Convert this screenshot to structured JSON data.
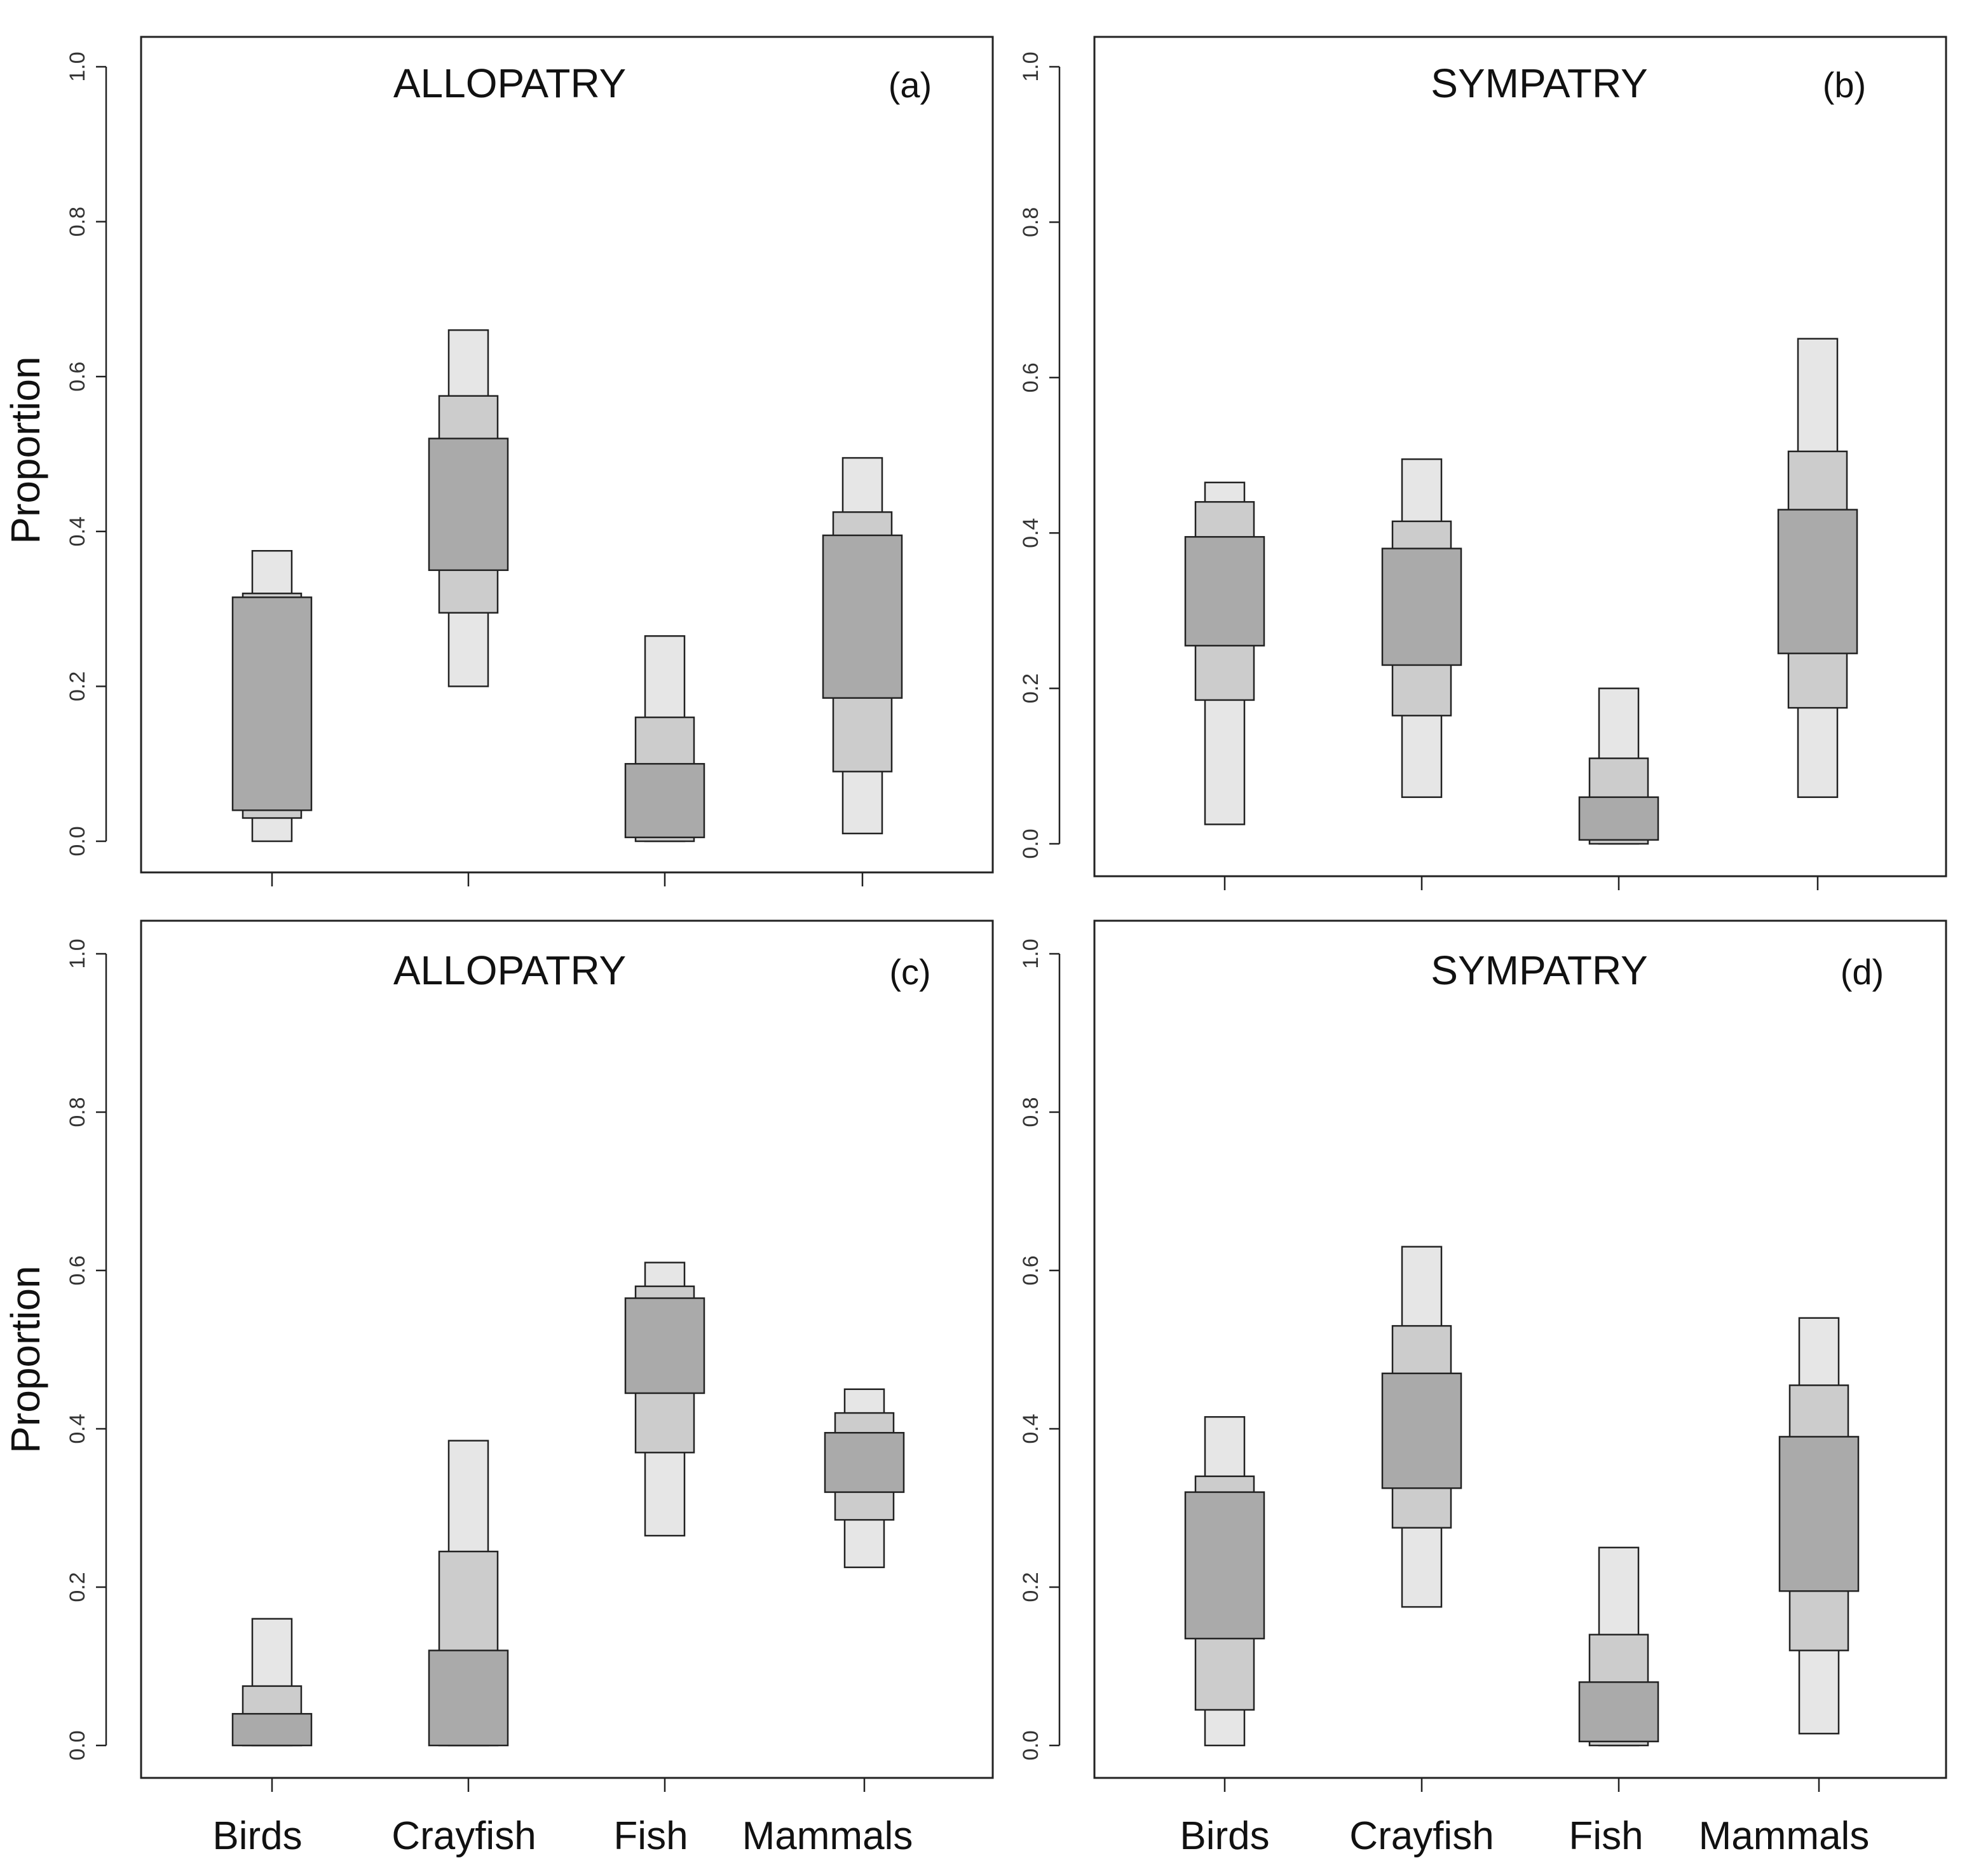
{
  "figure": {
    "ylabel": "Proportion",
    "colors": {
      "outer": "#e6e6e6",
      "middle": "#cccccc",
      "inner": "#aaaaaa",
      "stroke": "#222222"
    }
  },
  "chart_data": [
    {
      "type": "box-interval",
      "panel": "a",
      "title": "ALLOPATRY",
      "tag": "(a)",
      "ylabel": "Proportion",
      "ylim": [
        0,
        1
      ],
      "yticks": [
        "0.0",
        "0.2",
        "0.4",
        "0.6",
        "0.8",
        "1.0"
      ],
      "categories": [
        "Birds",
        "Crayfish",
        "Fish",
        "Mammals"
      ],
      "show_category_labels": false,
      "intervals": [
        {
          "category": "Birds",
          "outer": [
            0.0,
            0.375
          ],
          "middle": [
            0.03,
            0.32
          ],
          "inner": [
            0.04,
            0.315
          ]
        },
        {
          "category": "Crayfish",
          "outer": [
            0.2,
            0.66
          ],
          "middle": [
            0.295,
            0.575
          ],
          "inner": [
            0.35,
            0.52
          ]
        },
        {
          "category": "Fish",
          "outer": [
            0.0,
            0.265
          ],
          "middle": [
            0.0,
            0.16
          ],
          "inner": [
            0.005,
            0.1
          ]
        },
        {
          "category": "Mammals",
          "outer": [
            0.01,
            0.495
          ],
          "middle": [
            0.09,
            0.425
          ],
          "inner": [
            0.185,
            0.395
          ]
        }
      ]
    },
    {
      "type": "box-interval",
      "panel": "b",
      "title": "SYMPATRY",
      "tag": "(b)",
      "ylabel": "",
      "ylim": [
        0,
        1
      ],
      "yticks": [
        "0.0",
        "0.2",
        "0.4",
        "0.6",
        "0.8",
        "1.0"
      ],
      "categories": [
        "Birds",
        "Crayfish",
        "Fish",
        "Mammals"
      ],
      "show_category_labels": false,
      "intervals": [
        {
          "category": "Birds",
          "outer": [
            0.025,
            0.465
          ],
          "middle": [
            0.185,
            0.44
          ],
          "inner": [
            0.255,
            0.395
          ]
        },
        {
          "category": "Crayfish",
          "outer": [
            0.06,
            0.495
          ],
          "middle": [
            0.165,
            0.415
          ],
          "inner": [
            0.23,
            0.38
          ]
        },
        {
          "category": "Fish",
          "outer": [
            0.0,
            0.2
          ],
          "middle": [
            0.0,
            0.11
          ],
          "inner": [
            0.005,
            0.06
          ]
        },
        {
          "category": "Mammals",
          "outer": [
            0.06,
            0.65
          ],
          "middle": [
            0.175,
            0.505
          ],
          "inner": [
            0.245,
            0.43
          ]
        }
      ]
    },
    {
      "type": "box-interval",
      "panel": "c",
      "title": "ALLOPATRY",
      "tag": "(c)",
      "ylabel": "Proportion",
      "ylim": [
        0,
        1
      ],
      "yticks": [
        "0.0",
        "0.2",
        "0.4",
        "0.6",
        "0.8",
        "1.0"
      ],
      "categories": [
        "Birds",
        "Crayfish",
        "Fish",
        "Mammals"
      ],
      "show_category_labels": true,
      "intervals": [
        {
          "category": "Birds",
          "outer": [
            0.0,
            0.16
          ],
          "middle": [
            0.0,
            0.075
          ],
          "inner": [
            0.0,
            0.04
          ]
        },
        {
          "category": "Crayfish",
          "outer": [
            0.0,
            0.385
          ],
          "middle": [
            0.0,
            0.245
          ],
          "inner": [
            0.0,
            0.12
          ]
        },
        {
          "category": "Fish",
          "outer": [
            0.265,
            0.61
          ],
          "middle": [
            0.37,
            0.58
          ],
          "inner": [
            0.445,
            0.565
          ]
        },
        {
          "category": "Mammals",
          "outer": [
            0.225,
            0.45
          ],
          "middle": [
            0.285,
            0.42
          ],
          "inner": [
            0.32,
            0.395
          ]
        }
      ]
    },
    {
      "type": "box-interval",
      "panel": "d",
      "title": "SYMPATRY",
      "tag": "(d)",
      "ylabel": "",
      "ylim": [
        0,
        1
      ],
      "yticks": [
        "0.0",
        "0.2",
        "0.4",
        "0.6",
        "0.8",
        "1.0"
      ],
      "categories": [
        "Birds",
        "Crayfish",
        "Fish",
        "Mammals"
      ],
      "show_category_labels": true,
      "intervals": [
        {
          "category": "Birds",
          "outer": [
            0.0,
            0.415
          ],
          "middle": [
            0.045,
            0.34
          ],
          "inner": [
            0.135,
            0.32
          ]
        },
        {
          "category": "Crayfish",
          "outer": [
            0.175,
            0.63
          ],
          "middle": [
            0.275,
            0.53
          ],
          "inner": [
            0.325,
            0.47
          ]
        },
        {
          "category": "Fish",
          "outer": [
            0.0,
            0.25
          ],
          "middle": [
            0.0,
            0.14
          ],
          "inner": [
            0.005,
            0.08
          ]
        },
        {
          "category": "Mammals",
          "outer": [
            0.015,
            0.54
          ],
          "middle": [
            0.12,
            0.455
          ],
          "inner": [
            0.195,
            0.39
          ]
        }
      ]
    }
  ]
}
